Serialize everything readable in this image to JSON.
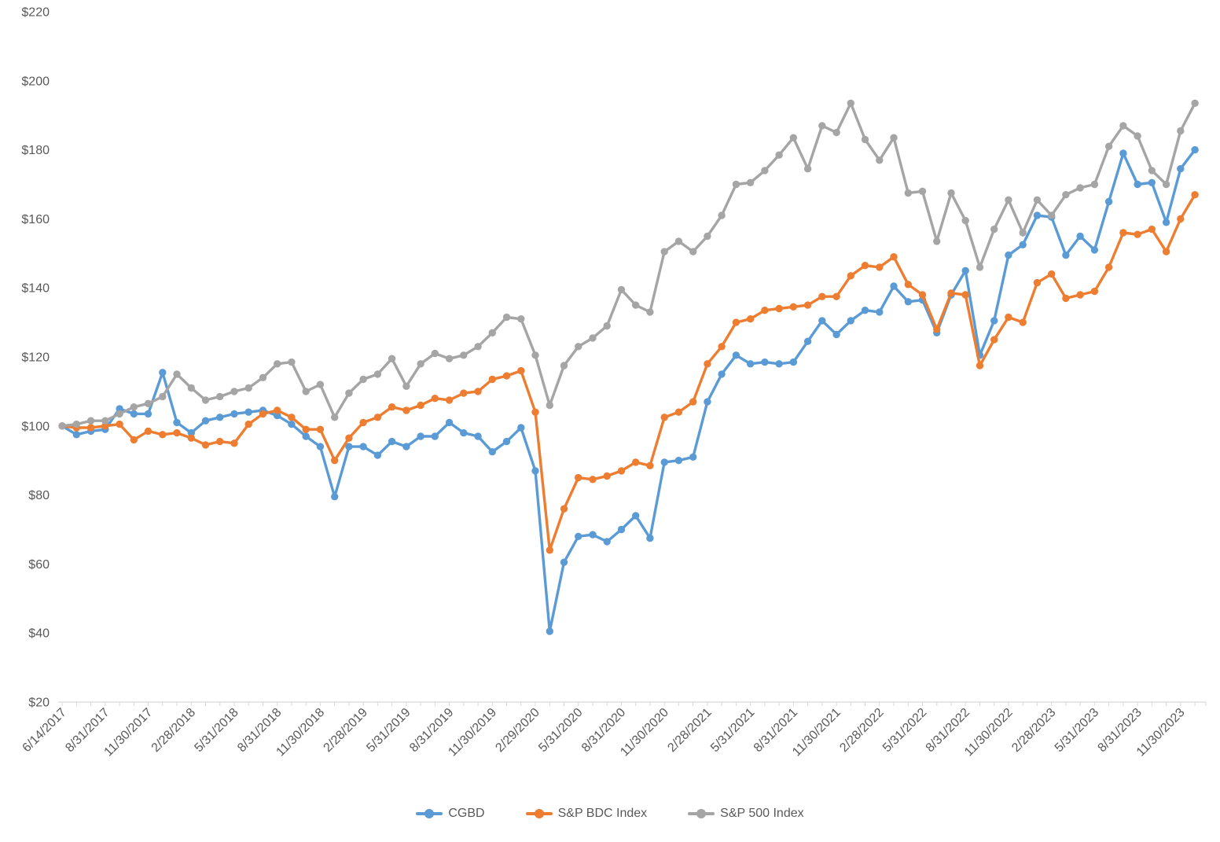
{
  "chart_data": {
    "type": "line",
    "title": "",
    "xlabel": "",
    "ylabel": "",
    "grid": false,
    "axis_color": "#D9D9D9",
    "label_color": "#595959",
    "y_axis": {
      "min": 20,
      "max": 220,
      "step": 20,
      "prefix": "$"
    },
    "x_tick_interval": 3,
    "x_tick_labels": [
      "6/14/2017",
      "8/31/2017",
      "11/30/2017",
      "2/28/2018",
      "5/31/2018",
      "8/31/2018",
      "11/30/2018",
      "2/28/2019",
      "5/31/2019",
      "8/31/2019",
      "11/30/2019",
      "2/29/2020",
      "5/31/2020",
      "8/31/2020",
      "11/30/2020",
      "2/28/2021",
      "5/31/2021",
      "8/31/2021",
      "11/30/2021",
      "2/28/2022",
      "5/31/2022",
      "8/31/2022",
      "11/30/2022",
      "2/28/2023",
      "5/31/2023",
      "8/31/2023",
      "11/30/2023"
    ],
    "x": [
      "6/14/2017",
      "6/30/2017",
      "7/31/2017",
      "8/31/2017",
      "9/30/2017",
      "10/31/2017",
      "11/30/2017",
      "12/31/2017",
      "1/31/2018",
      "2/28/2018",
      "3/31/2018",
      "4/30/2018",
      "5/31/2018",
      "6/30/2018",
      "7/31/2018",
      "8/31/2018",
      "9/30/2018",
      "10/31/2018",
      "11/30/2018",
      "12/31/2018",
      "1/31/2019",
      "2/28/2019",
      "3/31/2019",
      "4/30/2019",
      "5/31/2019",
      "6/30/2019",
      "7/31/2019",
      "8/31/2019",
      "9/30/2019",
      "10/31/2019",
      "11/30/2019",
      "12/31/2019",
      "1/31/2020",
      "2/29/2020",
      "3/31/2020",
      "4/30/2020",
      "5/31/2020",
      "6/30/2020",
      "7/31/2020",
      "8/31/2020",
      "9/30/2020",
      "10/31/2020",
      "11/30/2020",
      "12/31/2020",
      "1/31/2021",
      "2/28/2021",
      "3/31/2021",
      "4/30/2021",
      "5/31/2021",
      "6/30/2021",
      "7/31/2021",
      "8/31/2021",
      "9/30/2021",
      "10/31/2021",
      "11/30/2021",
      "12/31/2021",
      "1/31/2022",
      "2/28/2022",
      "3/31/2022",
      "4/30/2022",
      "5/31/2022",
      "6/30/2022",
      "7/31/2022",
      "8/31/2022",
      "9/30/2022",
      "10/31/2022",
      "11/30/2022",
      "12/31/2022",
      "1/31/2023",
      "2/28/2023",
      "3/31/2023",
      "4/30/2023",
      "5/31/2023",
      "6/30/2023",
      "7/31/2023",
      "8/31/2023",
      "9/30/2023",
      "10/31/2023",
      "11/30/2023",
      "12/31/2023"
    ],
    "series": [
      {
        "name": "CGBD",
        "color": "#5B9BD5",
        "values": [
          100,
          97.5,
          98.5,
          99,
          105,
          103.5,
          103.5,
          115.5,
          101,
          98,
          101.5,
          102.5,
          103.5,
          104,
          104.5,
          103,
          100.5,
          97,
          94,
          79.5,
          94,
          94,
          91.5,
          95.5,
          94,
          97,
          97,
          101,
          98,
          97,
          92.5,
          95.5,
          99.5,
          87,
          40.5,
          60.5,
          68,
          68.5,
          66.5,
          70,
          74,
          67.5,
          89.5,
          90,
          91,
          107,
          115,
          120.5,
          118,
          118.5,
          118,
          118.5,
          124.5,
          130.5,
          126.5,
          130.5,
          133.5,
          133,
          140.5,
          136,
          136.5,
          127,
          138,
          145,
          120.5,
          130.5,
          149.5,
          152.5,
          161,
          160.5,
          149.5,
          155,
          151,
          165,
          179,
          170,
          170.5,
          159,
          174.5,
          180
        ]
      },
      {
        "name": "S&P BDC Index",
        "color": "#ED7D31",
        "values": [
          100,
          99.5,
          99.5,
          100,
          100.5,
          96,
          98.5,
          97.5,
          98,
          96.5,
          94.5,
          95.5,
          95,
          100.5,
          103.5,
          104.5,
          102.5,
          99,
          99,
          90,
          96.5,
          101,
          102.5,
          105.5,
          104.5,
          106,
          108,
          107.5,
          109.5,
          110,
          113.5,
          114.5,
          116,
          104,
          64,
          76,
          85,
          84.5,
          85.5,
          87,
          89.5,
          88.5,
          102.5,
          104,
          107,
          118,
          123,
          130,
          131,
          133.5,
          134,
          134.5,
          135,
          137.5,
          137.5,
          143.5,
          146.5,
          146,
          149,
          141,
          138,
          128,
          138.5,
          138,
          117.5,
          125,
          131.5,
          130,
          141.5,
          144,
          137,
          138,
          139,
          146,
          156,
          155.5,
          157,
          150.5,
          160,
          167
        ]
      },
      {
        "name": "S&P 500 Index",
        "color": "#A5A5A5",
        "values": [
          100,
          100.5,
          101.5,
          101.5,
          103.5,
          105.5,
          106.5,
          108.5,
          115,
          111,
          107.5,
          108.5,
          110,
          111,
          114,
          118,
          118.5,
          110,
          112,
          102.5,
          109.5,
          113.5,
          115,
          119.5,
          111.5,
          118,
          121,
          119.5,
          120.5,
          123,
          127,
          131.5,
          131,
          120.5,
          106,
          117.5,
          123,
          125.5,
          129,
          139.5,
          135,
          133,
          150.5,
          153.5,
          150.5,
          155,
          161,
          170,
          170.5,
          174,
          178.5,
          183.5,
          174.5,
          187,
          185,
          193.5,
          183,
          177,
          183.5,
          167.5,
          168,
          153.5,
          167.5,
          159.5,
          146,
          157,
          165.5,
          156,
          165.5,
          161,
          167,
          169,
          170,
          181,
          187,
          184,
          174,
          170,
          185.5,
          193.5
        ]
      }
    ],
    "legend": {
      "position": "bottom",
      "entries": [
        "CGBD",
        "S&P BDC Index",
        "S&P 500 Index"
      ]
    }
  }
}
